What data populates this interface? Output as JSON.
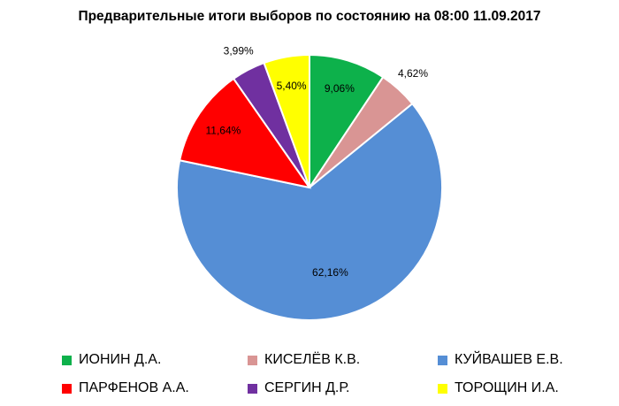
{
  "chart_data": {
    "type": "pie",
    "title": "Предварительные итоги выборов по состоянию на 08:00 11.09.2017",
    "slices": [
      {
        "name": "ИОНИН Д.А.",
        "value": 9.06,
        "label": "9,06%",
        "color": "#0DB14B"
      },
      {
        "name": "КИСЕЛЁВ К.В.",
        "value": 4.62,
        "label": "4,62%",
        "color": "#D99594"
      },
      {
        "name": "КУЙВАШЕВ Е.В.",
        "value": 62.16,
        "label": "62,16%",
        "color": "#558ED5"
      },
      {
        "name": "ПАРФЕНОВ А.А.",
        "value": 11.64,
        "label": "11,64%",
        "color": "#FF0000"
      },
      {
        "name": "СЕРГИН Д.Р.",
        "value": 3.99,
        "label": "3,99%",
        "color": "#7030A0"
      },
      {
        "name": "ТОРОЩИН И.А.",
        "value": 5.4,
        "label": "5,40%",
        "color": "#FFFF00"
      }
    ],
    "legend_position": "bottom"
  }
}
